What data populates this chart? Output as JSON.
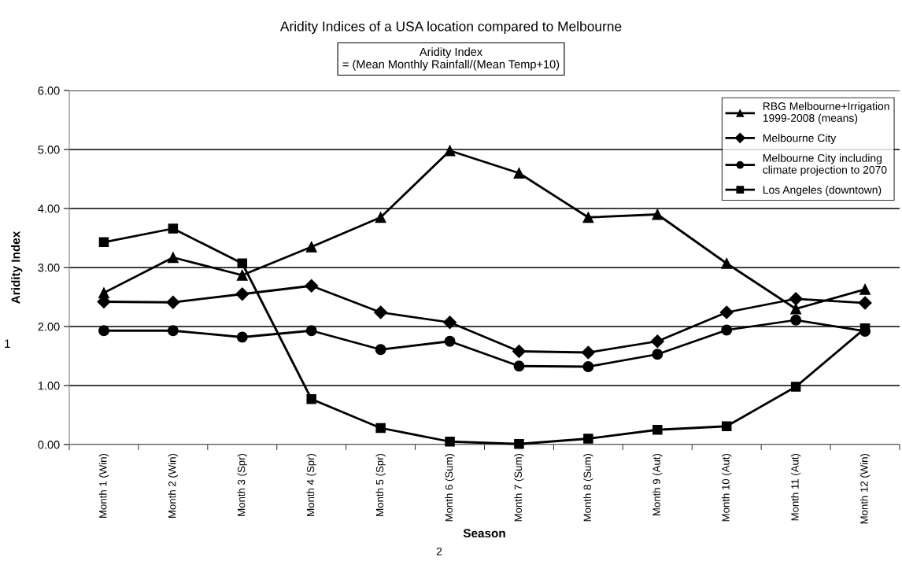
{
  "chart_data": {
    "type": "line",
    "title": "Aridity Indices of a USA location compared to Melbourne",
    "xlabel": "Season",
    "ylabel": "Aridity Index",
    "annotations": [
      "Aridity Index\n= (Mean Monthly Rainfall/(Mean Temp+10)",
      "1",
      "2"
    ],
    "categories": [
      "Month 1 (Win)",
      "Month 2 (Win)",
      "Month 3 (Spr)",
      "Month 4 (Spr)",
      "Month 5 (Spr)",
      "Month 6 (Sum)",
      "Month 7 (Sum)",
      "Month 8 (Sum)",
      "Month 9 (Aut)",
      "Month 10 (Aut)",
      "Month 11 (Aut)",
      "Month 12 (Win)"
    ],
    "series": [
      {
        "name": "RBG Melbourne+Irrigation\n1999-2008 (means)",
        "color": "#000000",
        "marker": "triangle",
        "values": [
          2.57,
          3.17,
          2.87,
          3.35,
          3.85,
          4.98,
          4.6,
          3.85,
          3.9,
          3.07,
          2.3,
          2.63
        ]
      },
      {
        "name": "Melbourne City",
        "color": "#000000",
        "marker": "diamond",
        "values": [
          2.42,
          2.41,
          2.55,
          2.69,
          2.24,
          2.07,
          1.58,
          1.56,
          1.75,
          2.24,
          2.47,
          2.4
        ]
      },
      {
        "name": "Melbourne City including\nclimate projection to 2070",
        "color": "#000000",
        "marker": "circle",
        "values": [
          1.93,
          1.93,
          1.82,
          1.93,
          1.61,
          1.75,
          1.33,
          1.32,
          1.53,
          1.94,
          2.11,
          1.92
        ]
      },
      {
        "name": "Los Angeles (downtown)",
        "color": "#000000",
        "marker": "square",
        "values": [
          3.43,
          3.66,
          3.07,
          0.77,
          0.28,
          0.05,
          0.01,
          0.1,
          0.25,
          0.31,
          0.98,
          1.97
        ]
      }
    ],
    "ylim": [
      0,
      6
    ],
    "yticks": [
      {
        "value": 0,
        "label": "0.00"
      },
      {
        "value": 1,
        "label": "1.00"
      },
      {
        "value": 2,
        "label": "2.00"
      },
      {
        "value": 3,
        "label": "3.00"
      },
      {
        "value": 4,
        "label": "4.00"
      },
      {
        "value": 5,
        "label": "5.00"
      },
      {
        "value": 6,
        "label": "6.00"
      }
    ],
    "grid": "y",
    "legend": "top right",
    "line_style": "solid"
  }
}
